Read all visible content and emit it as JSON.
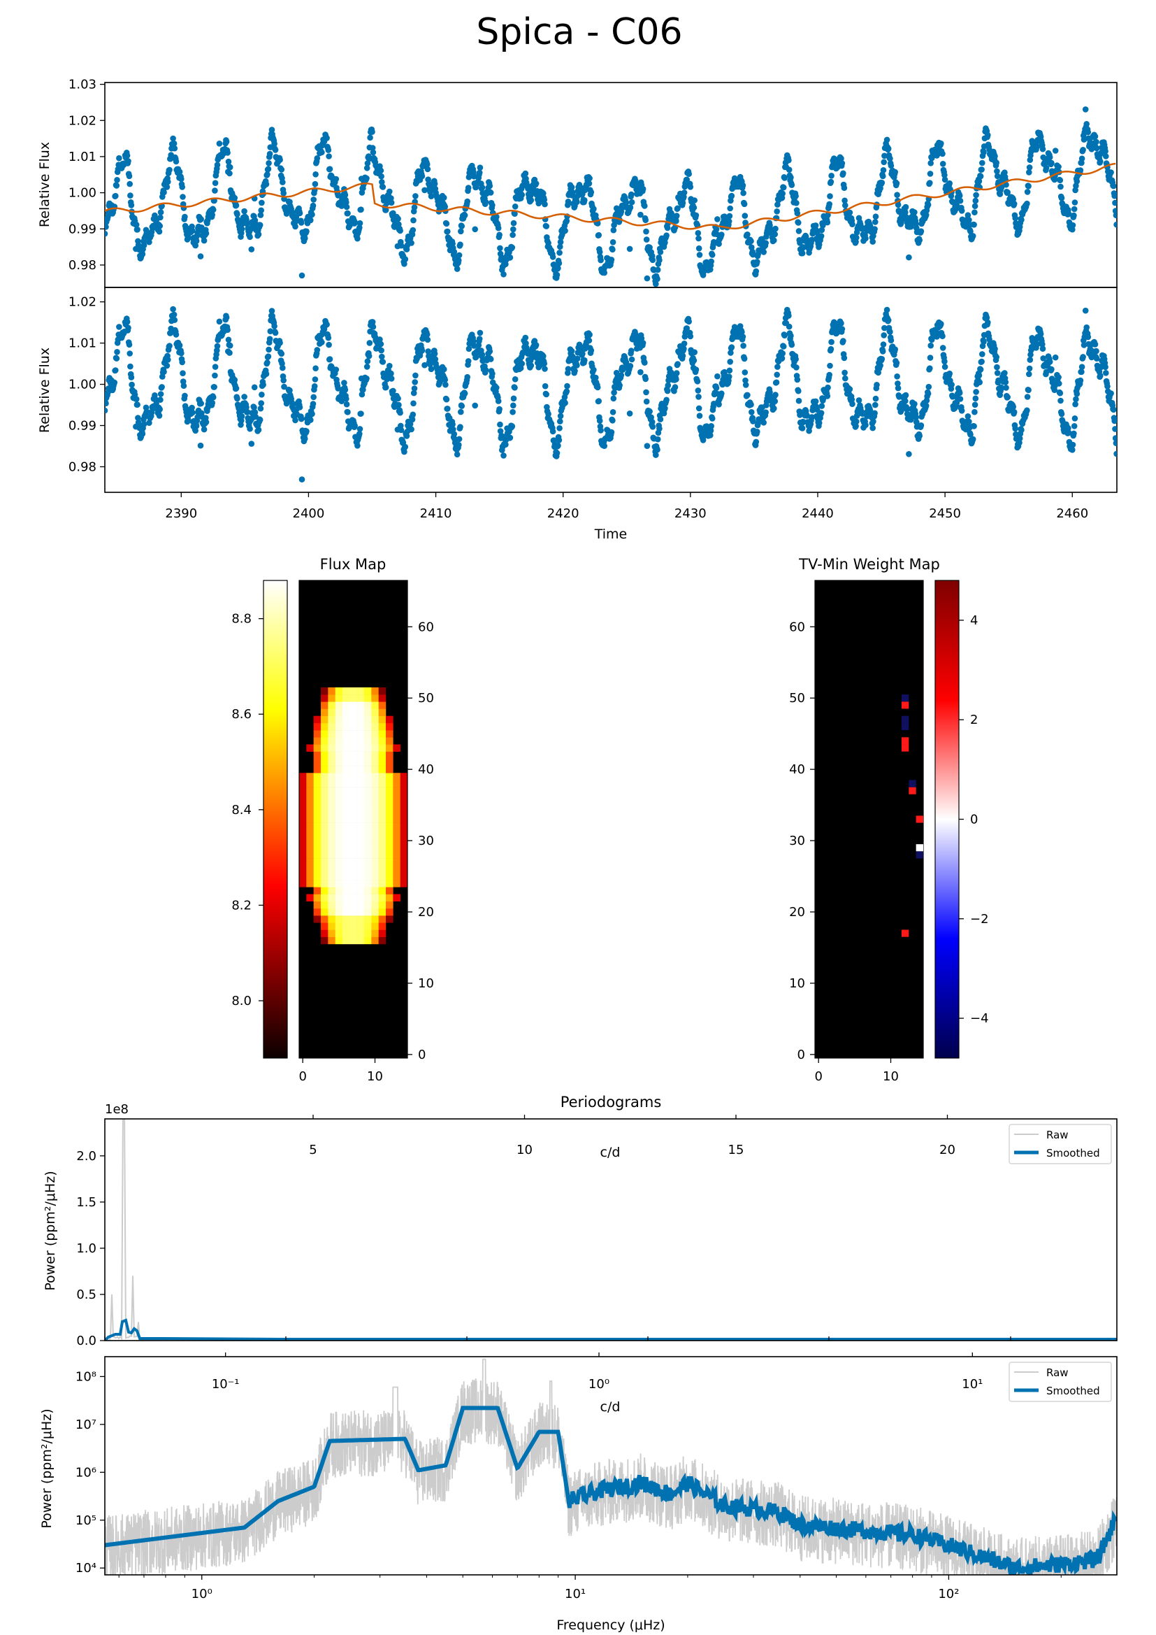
{
  "figure": {
    "title": "Spica - C06"
  },
  "chart_data": [
    {
      "type": "scatter",
      "id": "lightcurve-raw",
      "ylabel": "Relative Flux",
      "xlim": [
        2384.0,
        2463.5
      ],
      "ylim": [
        0.9738,
        1.0305
      ],
      "yticks": [
        "0.98",
        "0.99",
        "1.00",
        "1.01",
        "1.02",
        "1.03"
      ],
      "series": [
        {
          "color": "#0072b2",
          "marker": "o"
        },
        {
          "color": "#d55e00",
          "style": "line"
        }
      ]
    },
    {
      "type": "scatter",
      "id": "lightcurve-detrended",
      "xlabel": "Time",
      "ylabel": "Relative Flux",
      "xlim": [
        2384.0,
        2463.5
      ],
      "ylim": [
        0.9738,
        1.0235
      ],
      "xticks": [
        "2390",
        "2400",
        "2410",
        "2420",
        "2430",
        "2440",
        "2450",
        "2460"
      ],
      "yticks": [
        "0.98",
        "0.99",
        "1.00",
        "1.01",
        "1.02"
      ],
      "series": [
        {
          "color": "#0072b2",
          "marker": "o"
        }
      ]
    },
    {
      "type": "heatmap",
      "id": "flux-map",
      "title": "Flux Map",
      "colormap": "hot",
      "colorbar_ticks": [
        "8.0",
        "8.2",
        "8.4",
        "8.6",
        "8.8"
      ],
      "colorbar_range": [
        7.88,
        8.88
      ],
      "xticks": [
        "0",
        "10"
      ],
      "yticks": [
        "0",
        "10",
        "20",
        "30",
        "40",
        "50",
        "60"
      ],
      "xlim": [
        0,
        15
      ],
      "ylim": [
        0,
        67
      ]
    },
    {
      "type": "heatmap",
      "id": "weight-map",
      "title": "TV-Min Weight Map",
      "colormap": "seismic",
      "colorbar_ticks": [
        "−4",
        "−2",
        "0",
        "2",
        "4"
      ],
      "colorbar_range": [
        -4.8,
        4.8
      ],
      "xticks": [
        "0",
        "10"
      ],
      "yticks": [
        "0",
        "10",
        "20",
        "30",
        "40",
        "50",
        "60"
      ],
      "xlim": [
        0,
        15
      ],
      "ylim": [
        0,
        67
      ]
    },
    {
      "type": "line",
      "id": "periodogram-linear",
      "title": "Periodograms",
      "ylabel": "Power (ppm²/μHz)",
      "yscale_label": "1e8",
      "top_axis_label": "c/d",
      "top_ticks": [
        "5",
        "10",
        "15",
        "20"
      ],
      "yticks": [
        "0.0",
        "0.5",
        "1.0",
        "1.5",
        "2.0"
      ],
      "ylim": [
        0,
        2.4
      ],
      "legend": [
        "Raw",
        "Smoothed"
      ],
      "legend_position": "top-right",
      "series": [
        {
          "name": "Raw",
          "color": "#cccccc"
        },
        {
          "name": "Smoothed",
          "color": "#0072b2"
        }
      ]
    },
    {
      "type": "line",
      "id": "periodogram-log",
      "xlabel": "Frequency (μHz)",
      "ylabel": "Power (ppm²/μHz)",
      "xscale": "log",
      "yscale": "log",
      "top_axis_label": "c/d",
      "top_ticks": [
        "10⁻¹",
        "10⁰",
        "10¹"
      ],
      "xticks": [
        "10⁰",
        "10¹",
        "10²"
      ],
      "yticks": [
        "10⁴",
        "10⁵",
        "10⁶",
        "10⁷",
        "10⁸"
      ],
      "legend": [
        "Raw",
        "Smoothed"
      ],
      "legend_position": "top-right",
      "smoothed_points": [
        [
          0.55,
          30000
        ],
        [
          1.3,
          70000
        ],
        [
          1.6,
          250000
        ],
        [
          2.0,
          500000
        ],
        [
          2.2,
          4500000
        ],
        [
          3.5,
          5000000
        ],
        [
          3.8,
          1100000
        ],
        [
          4.5,
          1400000
        ],
        [
          5.0,
          22000000
        ],
        [
          6.2,
          22000000
        ],
        [
          7.0,
          1200000
        ],
        [
          8.0,
          7000000
        ],
        [
          9.0,
          7000000
        ],
        [
          9.6,
          250000
        ],
        [
          11.5,
          400000
        ],
        [
          15,
          600000
        ],
        [
          18,
          350000
        ],
        [
          20,
          600000
        ],
        [
          25,
          200000
        ],
        [
          35,
          150000
        ],
        [
          40,
          80000
        ],
        [
          60,
          60000
        ],
        [
          80,
          50000
        ],
        [
          100,
          30000
        ],
        [
          150,
          10000
        ],
        [
          200,
          12000
        ],
        [
          250,
          15000
        ],
        [
          282,
          120000
        ]
      ]
    }
  ]
}
